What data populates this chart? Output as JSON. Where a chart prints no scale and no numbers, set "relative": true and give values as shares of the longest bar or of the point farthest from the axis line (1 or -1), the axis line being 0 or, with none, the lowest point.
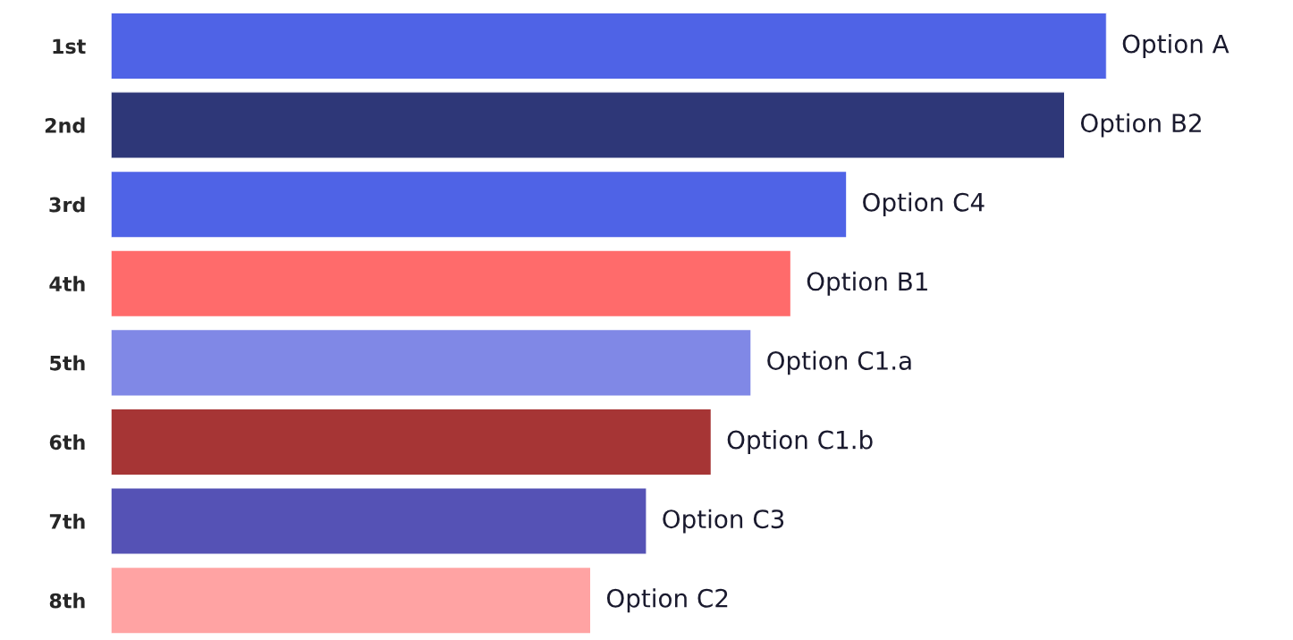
{
  "chart_data": {
    "type": "bar",
    "orientation": "horizontal",
    "relative": true,
    "categories": [
      "1st",
      "2nd",
      "3rd",
      "4th",
      "5th",
      "6th",
      "7th",
      "8th"
    ],
    "values": [
      1,
      0.958,
      0.739,
      0.683,
      0.643,
      0.603,
      0.538,
      0.482
    ],
    "colors": [
      "#4f63e6",
      "#2e3778",
      "#4f63e6",
      "#ff6b6b",
      "#8088e6",
      "#a63535",
      "#5552b5",
      "#ffa3a3"
    ],
    "annotations": [
      {
        "text": "Option A",
        "x": 1,
        "y": "1st"
      },
      {
        "text": "Option B2",
        "x": 0.958,
        "y": "2nd"
      },
      {
        "text": "Option C4",
        "x": 0.739,
        "y": "3rd"
      },
      {
        "text": "Option B1",
        "x": 0.683,
        "y": "4th"
      },
      {
        "text": "Option C1.a",
        "x": 0.643,
        "y": "5th"
      },
      {
        "text": "Option C1.b",
        "x": 0.603,
        "y": "6th"
      },
      {
        "text": "Option C3",
        "x": 0.538,
        "y": "7th"
      },
      {
        "text": "Option C2",
        "x": 0.482,
        "y": "8th"
      }
    ],
    "grid": false,
    "legend": false
  }
}
